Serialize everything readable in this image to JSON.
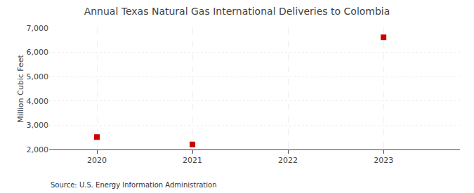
{
  "chart_data": {
    "type": "scatter",
    "title": "Annual Texas Natural Gas International Deliveries to Colombia",
    "ylabel": "Million Cubic Feet",
    "source": "Source: U.S. Energy Information Administration",
    "x": [
      2020,
      2021,
      2023
    ],
    "values": [
      2513,
      2208,
      6619
    ],
    "color": "#cc0000",
    "marker": "square",
    "xlim": [
      2019.5,
      2023.8
    ],
    "xticks": [
      2020,
      2021,
      2022,
      2023
    ],
    "ylim": [
      2000,
      7000
    ],
    "yticks": [
      {
        "value": 2000,
        "label": "2,000"
      },
      {
        "value": 3000,
        "label": "3,000"
      },
      {
        "value": 4000,
        "label": "4,000"
      },
      {
        "value": 5000,
        "label": "5,000"
      },
      {
        "value": 6000,
        "label": "6,000"
      },
      {
        "value": 7000,
        "label": "7,000"
      }
    ],
    "grid": true
  }
}
